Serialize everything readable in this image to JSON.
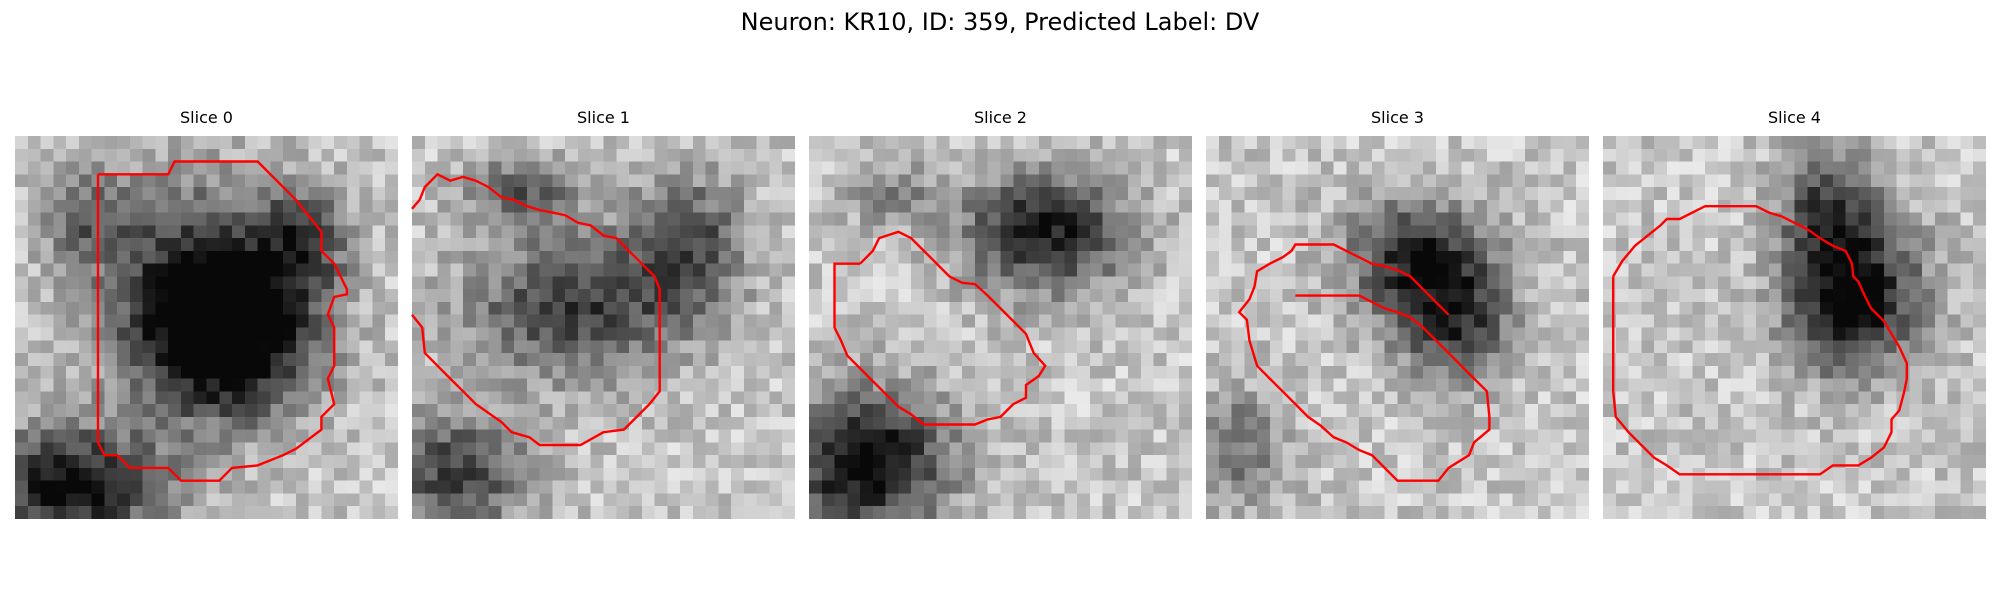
{
  "figure": {
    "title": "Neuron: KR10, ID: 359, Predicted Label: DV",
    "outline_color": "#ff0000"
  },
  "slices": [
    {
      "title": "Slice 0"
    },
    {
      "title": "Slice 1"
    },
    {
      "title": "Slice 2"
    },
    {
      "title": "Slice 3"
    },
    {
      "title": "Slice 4"
    }
  ]
}
